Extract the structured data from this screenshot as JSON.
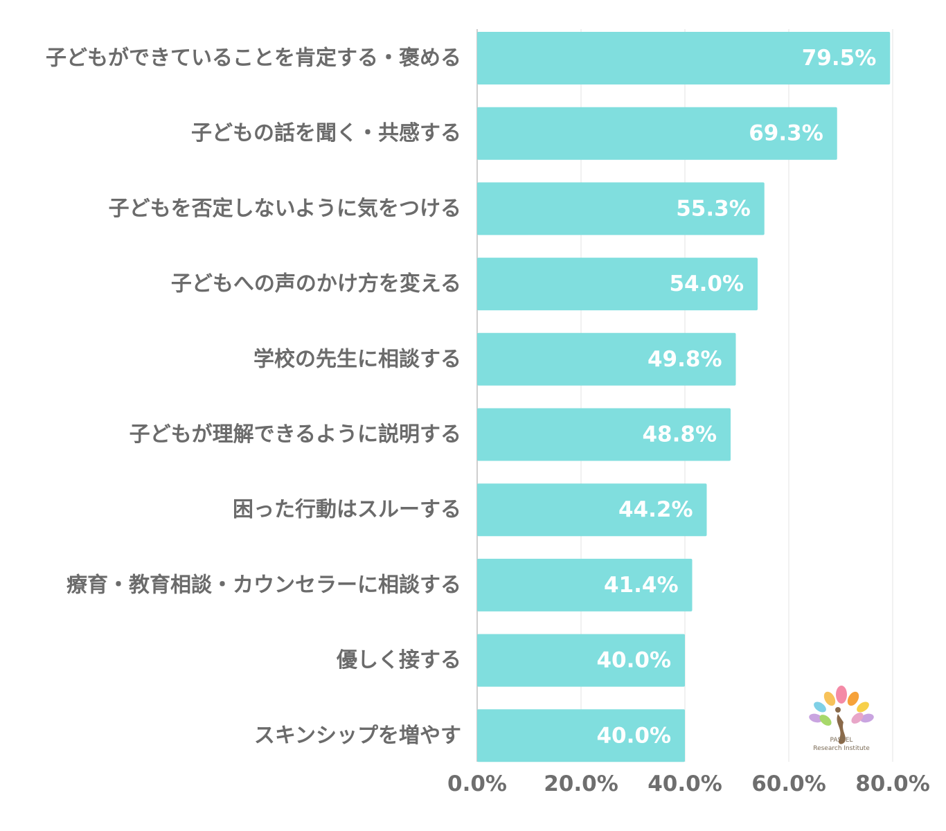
{
  "chart_data": {
    "type": "bar",
    "orientation": "horizontal",
    "categories": [
      "子どもができていることを肯定する・褒める",
      "子どもの話を聞く・共感する",
      "子どもを否定しないように気をつける",
      "子どもへの声のかけ方を変える",
      "学校の先生に相談する",
      "子どもが理解できるように説明する",
      "困った行動はスルーする",
      "療育・教育相談・カウンセラーに相談する",
      "優しく接する",
      "スキンシップを増やす"
    ],
    "values": [
      79.5,
      69.3,
      55.3,
      54.0,
      49.8,
      48.8,
      44.2,
      41.4,
      40.0,
      40.0
    ],
    "value_labels": [
      "79.5%",
      "69.3%",
      "55.3%",
      "54.0%",
      "49.8%",
      "48.8%",
      "44.2%",
      "41.4%",
      "40.0%",
      "40.0%"
    ],
    "xlim": [
      0,
      80
    ],
    "x_ticks": [
      0,
      20,
      40,
      60,
      80
    ],
    "x_tick_labels": [
      "0.0%",
      "20.0%",
      "40.0%",
      "60.0%",
      "80.0%"
    ],
    "grid": true,
    "bar_color": "#80dede"
  },
  "logo": {
    "line1": "PASTEL",
    "line2": "Research Institute"
  }
}
